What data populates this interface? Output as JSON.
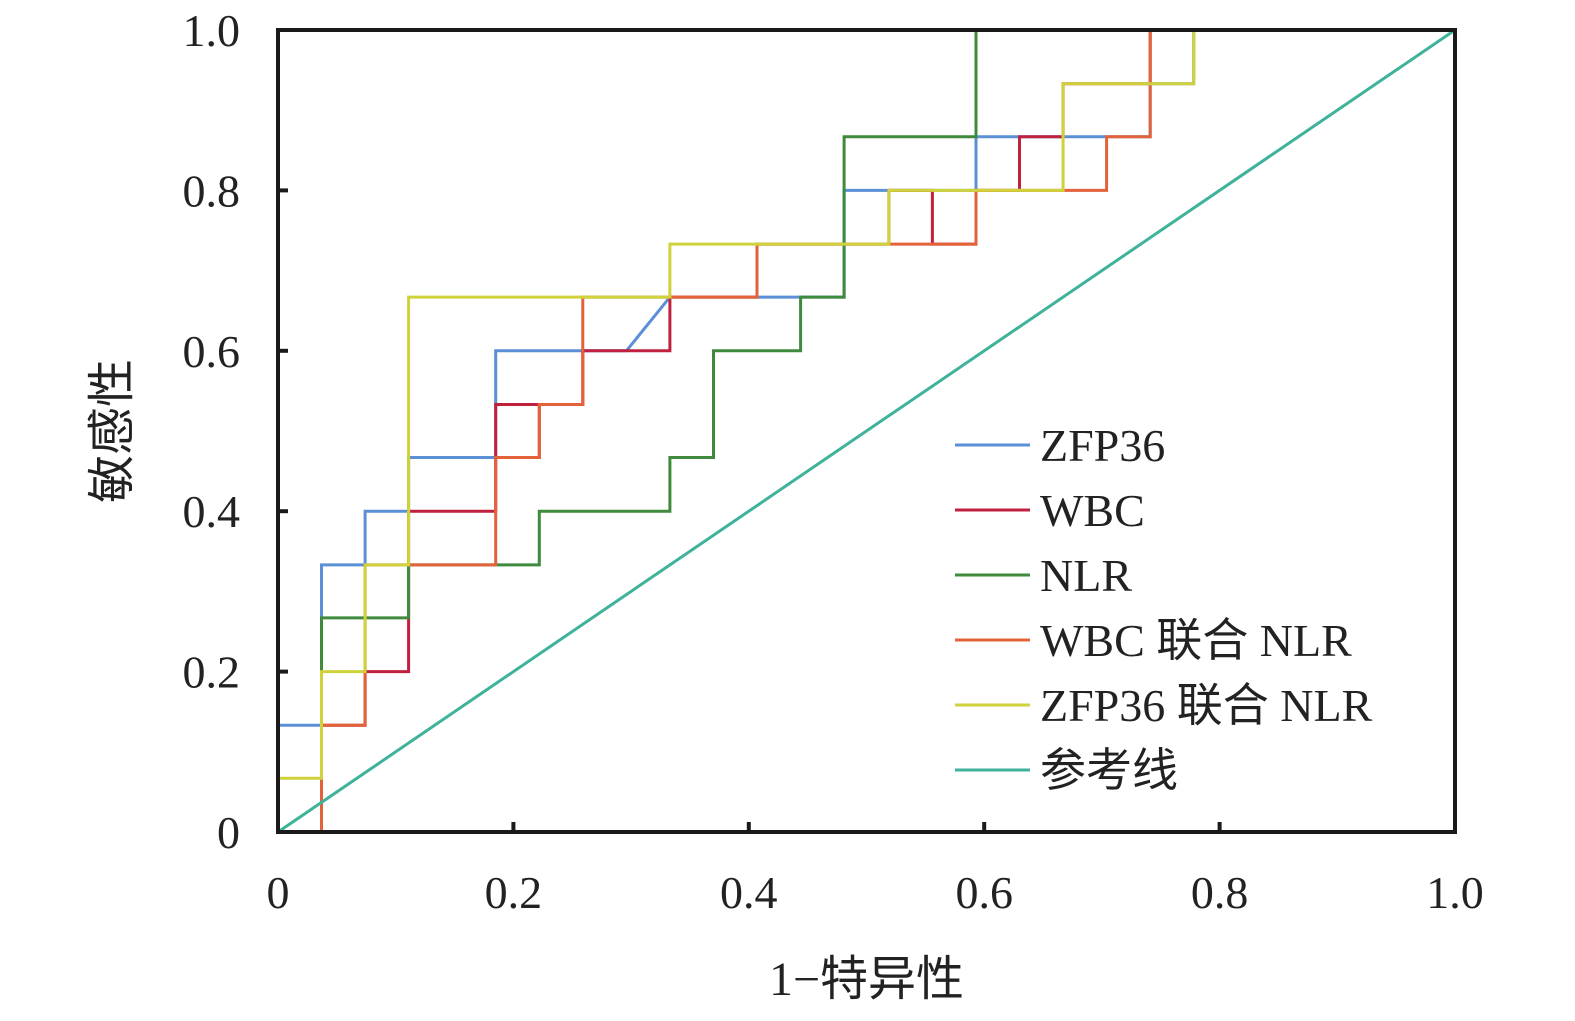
{
  "chart_data": {
    "type": "line",
    "step": true,
    "xlabel": "1−特异性",
    "ylabel": "敏感性",
    "xlim": [
      0,
      1
    ],
    "ylim": [
      0,
      1
    ],
    "x_ticks": [
      "0",
      "0.2",
      "0.4",
      "0.6",
      "0.8",
      "1.0"
    ],
    "y_ticks": [
      "0",
      "0.2",
      "0.4",
      "0.6",
      "0.8",
      "1.0"
    ],
    "grid": false,
    "legend_position": "bottom-right",
    "series": [
      {
        "name": "ZFP36",
        "color": "#5b8fd6",
        "points": [
          [
            0,
            0
          ],
          [
            0,
            0.133
          ],
          [
            0.037,
            0.133
          ],
          [
            0.037,
            0.333
          ],
          [
            0.074,
            0.333
          ],
          [
            0.074,
            0.4
          ],
          [
            0.111,
            0.4
          ],
          [
            0.111,
            0.467
          ],
          [
            0.185,
            0.467
          ],
          [
            0.185,
            0.6
          ],
          [
            0.296,
            0.6
          ],
          [
            0.333,
            0.667
          ],
          [
            0.481,
            0.667
          ],
          [
            0.481,
            0.8
          ],
          [
            0.593,
            0.8
          ],
          [
            0.593,
            0.867
          ],
          [
            0.741,
            0.867
          ],
          [
            0.741,
            0.933
          ],
          [
            0.778,
            0.933
          ],
          [
            0.778,
            1
          ],
          [
            1,
            1
          ]
        ]
      },
      {
        "name": "WBC",
        "color": "#c0213f",
        "points": [
          [
            0,
            0
          ],
          [
            0.037,
            0
          ],
          [
            0.037,
            0.133
          ],
          [
            0.074,
            0.133
          ],
          [
            0.074,
            0.2
          ],
          [
            0.111,
            0.2
          ],
          [
            0.111,
            0.4
          ],
          [
            0.185,
            0.4
          ],
          [
            0.185,
            0.533
          ],
          [
            0.222,
            0.533
          ],
          [
            0.222,
            0.467
          ],
          [
            0.185,
            0.467
          ],
          [
            0.185,
            0.533
          ],
          [
            0.259,
            0.533
          ],
          [
            0.259,
            0.6
          ],
          [
            0.333,
            0.6
          ],
          [
            0.333,
            0.667
          ],
          [
            0.407,
            0.667
          ],
          [
            0.407,
            0.733
          ],
          [
            0.519,
            0.733
          ],
          [
            0.519,
            0.8
          ],
          [
            0.556,
            0.8
          ],
          [
            0.556,
            0.733
          ],
          [
            0.593,
            0.733
          ],
          [
            0.593,
            0.8
          ],
          [
            0.63,
            0.8
          ],
          [
            0.63,
            0.867
          ],
          [
            0.667,
            0.867
          ],
          [
            0.667,
            0.933
          ],
          [
            0.741,
            0.933
          ],
          [
            0.741,
            1
          ],
          [
            1,
            1
          ]
        ]
      },
      {
        "name": "NLR",
        "color": "#3f8a3c",
        "points": [
          [
            0,
            0
          ],
          [
            0.037,
            0
          ],
          [
            0.037,
            0.267
          ],
          [
            0.111,
            0.267
          ],
          [
            0.111,
            0.333
          ],
          [
            0.222,
            0.333
          ],
          [
            0.222,
            0.4
          ],
          [
            0.333,
            0.4
          ],
          [
            0.333,
            0.467
          ],
          [
            0.37,
            0.467
          ],
          [
            0.37,
            0.6
          ],
          [
            0.444,
            0.6
          ],
          [
            0.444,
            0.667
          ],
          [
            0.481,
            0.667
          ],
          [
            0.481,
            0.867
          ],
          [
            0.593,
            0.867
          ],
          [
            0.593,
            1
          ],
          [
            1,
            1
          ]
        ]
      },
      {
        "name": "WBC 联合 NLR",
        "color": "#e3623a",
        "points": [
          [
            0,
            0
          ],
          [
            0.037,
            0
          ],
          [
            0.037,
            0.133
          ],
          [
            0.074,
            0.133
          ],
          [
            0.074,
            0.333
          ],
          [
            0.185,
            0.333
          ],
          [
            0.185,
            0.467
          ],
          [
            0.222,
            0.467
          ],
          [
            0.222,
            0.533
          ],
          [
            0.259,
            0.533
          ],
          [
            0.259,
            0.667
          ],
          [
            0.407,
            0.667
          ],
          [
            0.407,
            0.733
          ],
          [
            0.593,
            0.733
          ],
          [
            0.593,
            0.8
          ],
          [
            0.704,
            0.8
          ],
          [
            0.704,
            0.867
          ],
          [
            0.741,
            0.867
          ],
          [
            0.741,
            1
          ],
          [
            1,
            1
          ]
        ]
      },
      {
        "name": "ZFP36 联合 NLR",
        "color": "#cfd23b",
        "points": [
          [
            0,
            0
          ],
          [
            0,
            0.067
          ],
          [
            0.037,
            0.067
          ],
          [
            0.037,
            0.2
          ],
          [
            0.074,
            0.2
          ],
          [
            0.074,
            0.333
          ],
          [
            0.111,
            0.333
          ],
          [
            0.111,
            0.667
          ],
          [
            0.333,
            0.667
          ],
          [
            0.333,
            0.733
          ],
          [
            0.519,
            0.733
          ],
          [
            0.519,
            0.8
          ],
          [
            0.667,
            0.8
          ],
          [
            0.667,
            0.933
          ],
          [
            0.778,
            0.933
          ],
          [
            0.778,
            1
          ],
          [
            1,
            1
          ]
        ]
      },
      {
        "name": "参考线",
        "color": "#3fb39a",
        "points": [
          [
            0,
            0
          ],
          [
            1,
            1
          ]
        ]
      }
    ]
  }
}
